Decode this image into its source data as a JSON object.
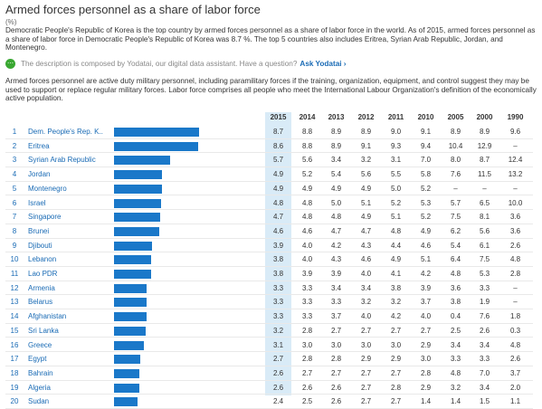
{
  "title": "Armed forces personnel as a share of labor force",
  "unit": "(%)",
  "description": "Democratic People's Republic of Korea is the top country by armed forces personnel as a share of labor force in the world. As of 2015, armed forces personnel as a share of labor force in Democratic People's Republic of Korea was 8.7 %. The top 5 countries also includes Eritrea, Syrian Arab Republic, Jordan, and Montenegro.",
  "yodatai": {
    "icon": "yodatai-chat-icon",
    "text": "The description is composed by Yodatai, our digital data assistant. Have a question?",
    "link": "Ask Yodatai ›"
  },
  "definition": "Armed forces personnel are active duty military personnel, including paramilitary forces if the training, organization, equipment, and control suggest they may be used to support or replace regular military forces. Labor force comprises all people who meet the International Labour Organization's definition of the economically active population.",
  "colors": {
    "bar": "#1a78c9",
    "highlight": "#d9ebf7",
    "link": "#1a6bb5"
  },
  "table": {
    "years": [
      "2015",
      "2014",
      "2013",
      "2012",
      "2011",
      "2010",
      "2005",
      "2000",
      "1990"
    ],
    "rows": [
      {
        "rank": "1",
        "country": "Dem. People's Rep. K..",
        "vals": [
          "8.7",
          "8.8",
          "8.9",
          "8.9",
          "9.0",
          "9.1",
          "8.9",
          "8.9",
          "9.6"
        ]
      },
      {
        "rank": "2",
        "country": "Eritrea",
        "vals": [
          "8.6",
          "8.8",
          "8.9",
          "9.1",
          "9.3",
          "9.4",
          "10.4",
          "12.9",
          "–"
        ]
      },
      {
        "rank": "3",
        "country": "Syrian Arab Republic",
        "vals": [
          "5.7",
          "5.6",
          "3.4",
          "3.2",
          "3.1",
          "7.0",
          "8.0",
          "8.7",
          "12.4"
        ]
      },
      {
        "rank": "4",
        "country": "Jordan",
        "vals": [
          "4.9",
          "5.2",
          "5.4",
          "5.6",
          "5.5",
          "5.8",
          "7.6",
          "11.5",
          "13.2"
        ]
      },
      {
        "rank": "5",
        "country": "Montenegro",
        "vals": [
          "4.9",
          "4.9",
          "4.9",
          "4.9",
          "5.0",
          "5.2",
          "–",
          "–",
          "–"
        ]
      },
      {
        "rank": "6",
        "country": "Israel",
        "vals": [
          "4.8",
          "4.8",
          "5.0",
          "5.1",
          "5.2",
          "5.3",
          "5.7",
          "6.5",
          "10.0"
        ]
      },
      {
        "rank": "7",
        "country": "Singapore",
        "vals": [
          "4.7",
          "4.8",
          "4.8",
          "4.9",
          "5.1",
          "5.2",
          "7.5",
          "8.1",
          "3.6"
        ]
      },
      {
        "rank": "8",
        "country": "Brunei",
        "vals": [
          "4.6",
          "4.6",
          "4.7",
          "4.7",
          "4.8",
          "4.9",
          "6.2",
          "5.6",
          "3.6"
        ]
      },
      {
        "rank": "9",
        "country": "Djibouti",
        "vals": [
          "3.9",
          "4.0",
          "4.2",
          "4.3",
          "4.4",
          "4.6",
          "5.4",
          "6.1",
          "2.6"
        ]
      },
      {
        "rank": "10",
        "country": "Lebanon",
        "vals": [
          "3.8",
          "4.0",
          "4.3",
          "4.6",
          "4.9",
          "5.1",
          "6.4",
          "7.5",
          "4.8"
        ]
      },
      {
        "rank": "11",
        "country": "Lao PDR",
        "vals": [
          "3.8",
          "3.9",
          "3.9",
          "4.0",
          "4.1",
          "4.2",
          "4.8",
          "5.3",
          "2.8"
        ]
      },
      {
        "rank": "12",
        "country": "Armenia",
        "vals": [
          "3.3",
          "3.3",
          "3.4",
          "3.4",
          "3.8",
          "3.9",
          "3.6",
          "3.3",
          "–"
        ]
      },
      {
        "rank": "13",
        "country": "Belarus",
        "vals": [
          "3.3",
          "3.3",
          "3.3",
          "3.2",
          "3.2",
          "3.7",
          "3.8",
          "1.9",
          "–"
        ]
      },
      {
        "rank": "14",
        "country": "Afghanistan",
        "vals": [
          "3.3",
          "3.3",
          "3.7",
          "4.0",
          "4.2",
          "4.0",
          "0.4",
          "7.6",
          "1.8"
        ]
      },
      {
        "rank": "15",
        "country": "Sri Lanka",
        "vals": [
          "3.2",
          "2.8",
          "2.7",
          "2.7",
          "2.7",
          "2.7",
          "2.5",
          "2.6",
          "0.3"
        ]
      },
      {
        "rank": "16",
        "country": "Greece",
        "vals": [
          "3.1",
          "3.0",
          "3.0",
          "3.0",
          "3.0",
          "2.9",
          "3.4",
          "3.4",
          "4.8"
        ]
      },
      {
        "rank": "17",
        "country": "Egypt",
        "vals": [
          "2.7",
          "2.8",
          "2.8",
          "2.9",
          "2.9",
          "3.0",
          "3.3",
          "3.3",
          "2.6"
        ]
      },
      {
        "rank": "18",
        "country": "Bahrain",
        "vals": [
          "2.6",
          "2.7",
          "2.7",
          "2.7",
          "2.7",
          "2.8",
          "4.8",
          "7.0",
          "3.7"
        ]
      },
      {
        "rank": "19",
        "country": "Algeria",
        "vals": [
          "2.6",
          "2.6",
          "2.6",
          "2.7",
          "2.8",
          "2.9",
          "3.2",
          "3.4",
          "2.0"
        ]
      },
      {
        "rank": "20",
        "country": "Sudan",
        "vals": [
          "2.4",
          "2.5",
          "2.6",
          "2.7",
          "2.7",
          "1.4",
          "1.4",
          "1.5",
          "1.1"
        ]
      }
    ]
  }
}
